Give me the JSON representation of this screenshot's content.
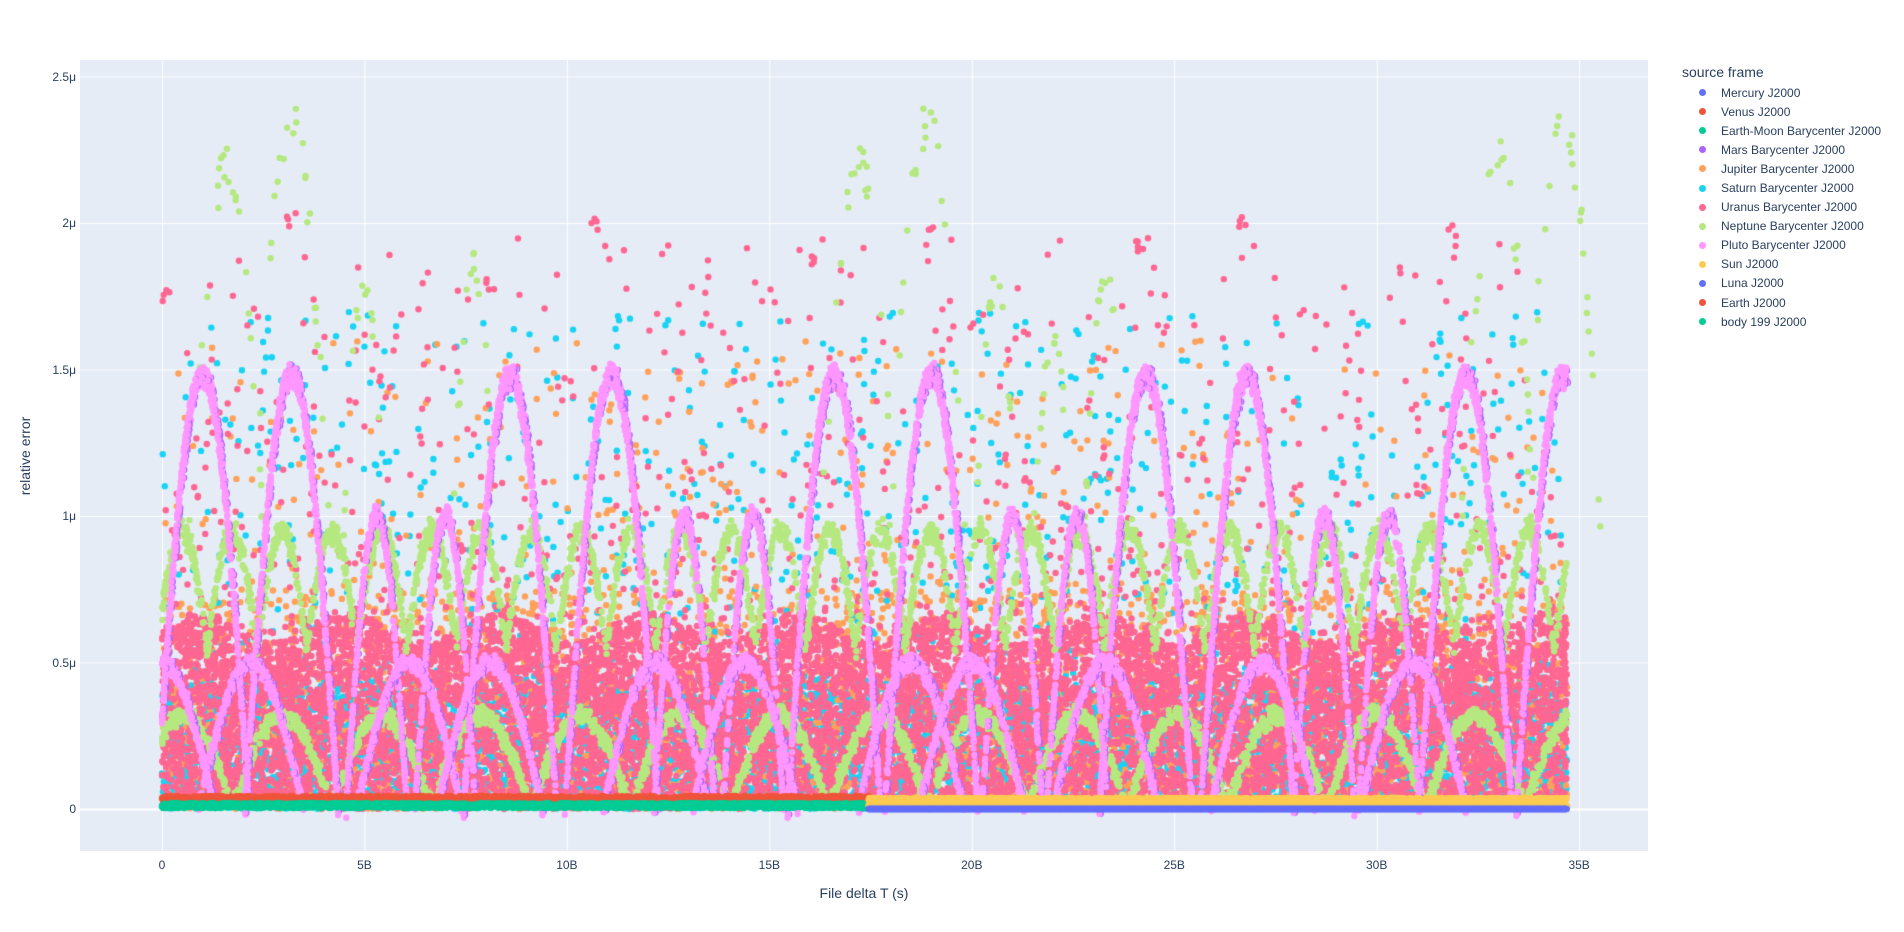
{
  "chart_data": {
    "type": "scatter",
    "title": "",
    "xlabel": "File delta T (s)",
    "ylabel": "relative error",
    "xlim": [
      -2000000000.0,
      36700000000.0
    ],
    "ylim": [
      -1.45e-07,
      2.556e-06
    ],
    "grid": true,
    "legend_position": "right",
    "legend_title": "source frame",
    "x_ticks": [
      {
        "value": 0,
        "label": "0"
      },
      {
        "value": 5000000000.0,
        "label": "5B"
      },
      {
        "value": 10000000000.0,
        "label": "10B"
      },
      {
        "value": 15000000000.0,
        "label": "15B"
      },
      {
        "value": 20000000000.0,
        "label": "20B"
      },
      {
        "value": 25000000000.0,
        "label": "25B"
      },
      {
        "value": 30000000000.0,
        "label": "30B"
      },
      {
        "value": 35000000000.0,
        "label": "35B"
      }
    ],
    "y_ticks": [
      {
        "value": 0,
        "label": "0"
      },
      {
        "value": 5e-07,
        "label": "0.5μ"
      },
      {
        "value": 1e-06,
        "label": "1μ"
      },
      {
        "value": 1.5e-06,
        "label": "1.5μ"
      },
      {
        "value": 2e-06,
        "label": "2μ"
      },
      {
        "value": 2.5e-06,
        "label": "2.5μ"
      }
    ],
    "x_data_range": [
      0,
      34700000000.0
    ],
    "frame_switch_x": 17450000000.0,
    "series": [
      {
        "name": "Mercury J2000",
        "color": "#636efa",
        "x_range": [
          17450000000.0,
          34700000000.0
        ],
        "pattern": "baseline",
        "y_typical": [
          0,
          1e-08
        ]
      },
      {
        "name": "Venus J2000",
        "color": "#ef553b",
        "x_range": [
          0,
          17450000000.0
        ],
        "pattern": "baseline",
        "y_typical": [
          0,
          5e-08
        ]
      },
      {
        "name": "Earth-Moon Barycenter J2000",
        "color": "#00cc96",
        "x_range": [
          0,
          17450000000.0
        ],
        "pattern": "baseline",
        "y_typical": [
          0,
          3e-08
        ]
      },
      {
        "name": "Mars Barycenter J2000",
        "color": "#ab63fa",
        "x_range": [
          0,
          34700000000.0
        ],
        "pattern": "follows-pluto",
        "y_typical": [
          0,
          1.5e-06
        ]
      },
      {
        "name": "Jupiter Barycenter J2000",
        "color": "#ffa15a",
        "x_range": [
          0,
          34700000000.0
        ],
        "pattern": "noise",
        "y_typical": [
          0,
          1.6e-06
        ]
      },
      {
        "name": "Saturn Barycenter J2000",
        "color": "#19d3f3",
        "x_range": [
          0,
          34700000000.0
        ],
        "pattern": "noise",
        "y_typical": [
          0,
          1.75e-06
        ]
      },
      {
        "name": "Uranus Barycenter J2000",
        "color": "#ff6692",
        "x_range": [
          0,
          34700000000.0
        ],
        "pattern": "dense-noise",
        "y_typical": [
          0,
          6.5e-07
        ],
        "outliers_max": 2.06e-06
      },
      {
        "name": "Neptune Barycenter J2000",
        "color": "#b6e880",
        "x_range": [
          0,
          34700000000.0
        ],
        "pattern": "arches",
        "y_typical": [
          0,
          1.05e-06
        ],
        "outliers_max": 2.42e-06
      },
      {
        "name": "Pluto Barycenter J2000",
        "color": "#ff97ff",
        "x_range": [
          0,
          34700000000.0
        ],
        "pattern": "arches",
        "y_typical": [
          0,
          1.5e-06
        ],
        "large_arch_peaks_B": [
          1.0,
          3.2,
          8.6,
          11.1,
          16.6,
          19.0,
          24.3,
          26.8,
          32.2,
          34.6
        ],
        "mid_arch_peaks_B": [
          5.3,
          7.0,
          12.9,
          14.6,
          21.0,
          22.6,
          28.7,
          30.3
        ],
        "small_arch_peaks_B": [
          0.0,
          2.2,
          6.1,
          8.1,
          12.2,
          14.4,
          18.5,
          20.0,
          23.3,
          27.2,
          30.9
        ]
      },
      {
        "name": "Sun J2000",
        "color": "#fecb52",
        "x_range": [
          17450000000.0,
          34700000000.0
        ],
        "pattern": "baseline",
        "y_typical": [
          1e-08,
          4e-08
        ]
      },
      {
        "name": "Luna J2000",
        "color": "#636efa",
        "x_range": [
          17450000000.0,
          34700000000.0
        ],
        "pattern": "baseline",
        "y_typical": [
          0,
          5e-09
        ]
      },
      {
        "name": "Earth J2000",
        "color": "#ef553b",
        "x_range": [
          0,
          17450000000.0
        ],
        "pattern": "baseline",
        "y_typical": [
          2e-08,
          5e-08
        ]
      },
      {
        "name": "body 199 J2000",
        "color": "#00cc96",
        "x_range": [
          0,
          17450000000.0
        ],
        "pattern": "baseline",
        "y_typical": [
          0,
          3e-08
        ]
      }
    ],
    "neptune_peaks": {
      "tall_peaks_B": [
        {
          "x": 1.6,
          "y": 2.26e-06
        },
        {
          "x": 3.2,
          "y": 2.41e-06
        },
        {
          "x": 17.2,
          "y": 2.28e-06
        },
        {
          "x": 18.9,
          "y": 2.41e-06
        },
        {
          "x": 33.0,
          "y": 2.3e-06
        },
        {
          "x": 34.6,
          "y": 2.42e-06
        }
      ],
      "mid_peaks_B": [
        {
          "x": 5.0,
          "y": 1.85e-06
        },
        {
          "x": 7.7,
          "y": 1.9e-06
        },
        {
          "x": 20.6,
          "y": 1.83e-06
        },
        {
          "x": 22.0,
          "y": 1.66e-06
        },
        {
          "x": 23.3,
          "y": 1.88e-06
        }
      ],
      "wave_peaks_1u_B": [
        1.5,
        2.0,
        3.3,
        4.3,
        5.0,
        7.8,
        8.7,
        11.2,
        13.0,
        14.6,
        16.0,
        17.6,
        19.4,
        21.2,
        23.8,
        24.9,
        26.4,
        28.4,
        30.0,
        31.6,
        33.0,
        34.5
      ]
    }
  },
  "legend": {
    "title": "source frame",
    "items": [
      {
        "label": "Mercury J2000",
        "color": "#636efa"
      },
      {
        "label": "Venus J2000",
        "color": "#ef553b"
      },
      {
        "label": "Earth-Moon Barycenter J2000",
        "color": "#00cc96"
      },
      {
        "label": "Mars Barycenter J2000",
        "color": "#ab63fa"
      },
      {
        "label": "Jupiter Barycenter J2000",
        "color": "#ffa15a"
      },
      {
        "label": "Saturn Barycenter J2000",
        "color": "#19d3f3"
      },
      {
        "label": "Uranus Barycenter J2000",
        "color": "#ff6692"
      },
      {
        "label": "Neptune Barycenter J2000",
        "color": "#b6e880"
      },
      {
        "label": "Pluto Barycenter J2000",
        "color": "#ff97ff"
      },
      {
        "label": "Sun J2000",
        "color": "#fecb52"
      },
      {
        "label": "Luna J2000",
        "color": "#636efa"
      },
      {
        "label": "Earth J2000",
        "color": "#ef553b"
      },
      {
        "label": "body 199 J2000",
        "color": "#00cc96"
      }
    ]
  },
  "axes": {
    "xlabel": "File delta T (s)",
    "ylabel": "relative error"
  },
  "colors": {
    "plot_bg": "#e5ecf6",
    "grid": "#ffffff",
    "text": "#2a3f5f"
  }
}
